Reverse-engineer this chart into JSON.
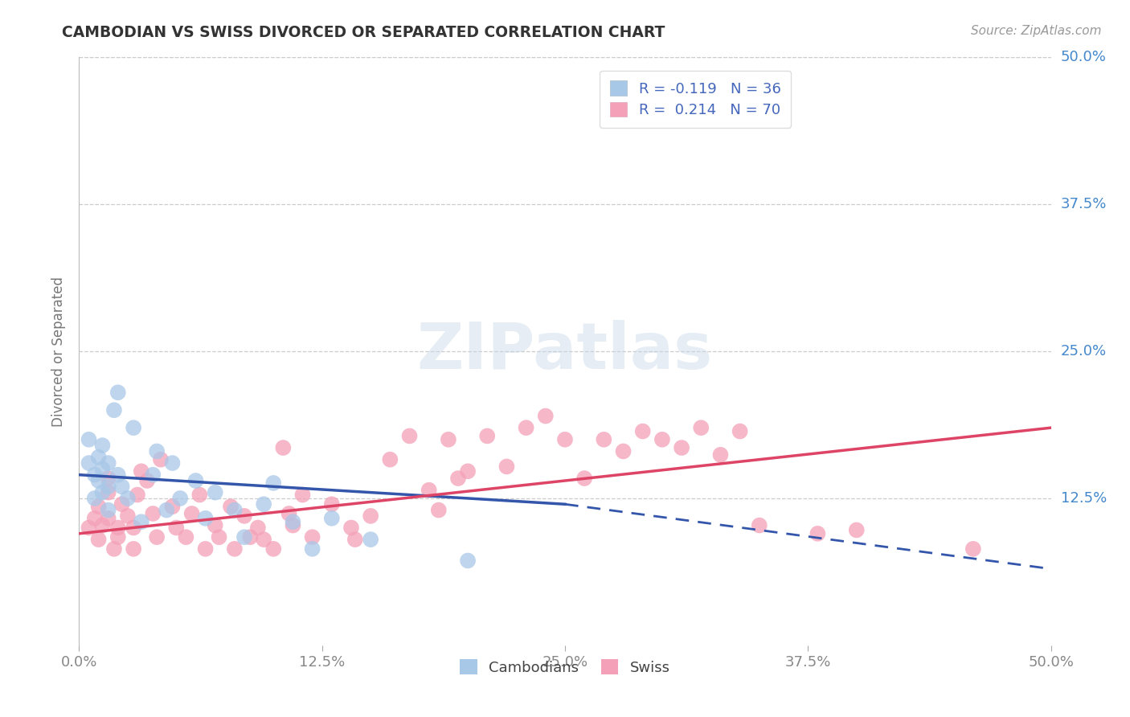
{
  "title": "CAMBODIAN VS SWISS DIVORCED OR SEPARATED CORRELATION CHART",
  "source": "Source: ZipAtlas.com",
  "ylabel": "Divorced or Separated",
  "xlim": [
    0.0,
    0.5
  ],
  "ylim": [
    0.0,
    0.5
  ],
  "xtick_labels": [
    "0.0%",
    "",
    "",
    "",
    "",
    "",
    "",
    "",
    "",
    "",
    "",
    "",
    "",
    "",
    "",
    "",
    "",
    "",
    "",
    "",
    "12.5%",
    "",
    "",
    "",
    "",
    "",
    "",
    "",
    "",
    "",
    "",
    "",
    "",
    "",
    "",
    "",
    "",
    "",
    "",
    "",
    "25.0%",
    "",
    "",
    "",
    "",
    "",
    "",
    "",
    "",
    "",
    "",
    "",
    "",
    "",
    "",
    "",
    "",
    "",
    "",
    "",
    "37.5%",
    "",
    "",
    "",
    "",
    "",
    "",
    "",
    "",
    "",
    "",
    "",
    "",
    "",
    "",
    "",
    "",
    "",
    "",
    "",
    "50.0%"
  ],
  "xtick_vals": [
    0.0,
    0.125,
    0.25,
    0.375,
    0.5
  ],
  "xtick_labels_simple": [
    "0.0%",
    "12.5%",
    "25.0%",
    "37.5%",
    "50.0%"
  ],
  "ytick_labels": [
    "12.5%",
    "25.0%",
    "37.5%",
    "50.0%"
  ],
  "ytick_vals": [
    0.125,
    0.25,
    0.375,
    0.5
  ],
  "legend_label1": "R = -0.119   N = 36",
  "legend_label2": "R =  0.214   N = 70",
  "legend_bottom_label1": "Cambodians",
  "legend_bottom_label2": "Swiss",
  "cambodian_color": "#a8c8e8",
  "swiss_color": "#f4a0b8",
  "trendline1_color": "#3355aa",
  "trendline2_color": "#dd4466",
  "watermark_color": "#c8d8e8",
  "cambodian_R": -0.119,
  "cambodian_N": 36,
  "swiss_R": 0.214,
  "swiss_N": 70,
  "cambodian_points": [
    [
      0.005,
      0.155
    ],
    [
      0.005,
      0.175
    ],
    [
      0.008,
      0.145
    ],
    [
      0.008,
      0.125
    ],
    [
      0.01,
      0.16
    ],
    [
      0.01,
      0.14
    ],
    [
      0.012,
      0.17
    ],
    [
      0.012,
      0.15
    ],
    [
      0.012,
      0.13
    ],
    [
      0.015,
      0.155
    ],
    [
      0.015,
      0.135
    ],
    [
      0.015,
      0.115
    ],
    [
      0.018,
      0.2
    ],
    [
      0.02,
      0.215
    ],
    [
      0.02,
      0.145
    ],
    [
      0.022,
      0.135
    ],
    [
      0.025,
      0.125
    ],
    [
      0.028,
      0.185
    ],
    [
      0.032,
      0.105
    ],
    [
      0.038,
      0.145
    ],
    [
      0.04,
      0.165
    ],
    [
      0.045,
      0.115
    ],
    [
      0.048,
      0.155
    ],
    [
      0.052,
      0.125
    ],
    [
      0.06,
      0.14
    ],
    [
      0.065,
      0.108
    ],
    [
      0.07,
      0.13
    ],
    [
      0.08,
      0.115
    ],
    [
      0.085,
      0.092
    ],
    [
      0.095,
      0.12
    ],
    [
      0.1,
      0.138
    ],
    [
      0.11,
      0.105
    ],
    [
      0.12,
      0.082
    ],
    [
      0.13,
      0.108
    ],
    [
      0.15,
      0.09
    ],
    [
      0.2,
      0.072
    ]
  ],
  "swiss_points": [
    [
      0.005,
      0.1
    ],
    [
      0.008,
      0.108
    ],
    [
      0.01,
      0.118
    ],
    [
      0.01,
      0.09
    ],
    [
      0.012,
      0.102
    ],
    [
      0.015,
      0.108
    ],
    [
      0.015,
      0.13
    ],
    [
      0.015,
      0.142
    ],
    [
      0.018,
      0.082
    ],
    [
      0.02,
      0.1
    ],
    [
      0.02,
      0.092
    ],
    [
      0.022,
      0.12
    ],
    [
      0.025,
      0.11
    ],
    [
      0.028,
      0.1
    ],
    [
      0.028,
      0.082
    ],
    [
      0.03,
      0.128
    ],
    [
      0.032,
      0.148
    ],
    [
      0.035,
      0.14
    ],
    [
      0.038,
      0.112
    ],
    [
      0.04,
      0.092
    ],
    [
      0.042,
      0.158
    ],
    [
      0.048,
      0.118
    ],
    [
      0.05,
      0.1
    ],
    [
      0.055,
      0.092
    ],
    [
      0.058,
      0.112
    ],
    [
      0.062,
      0.128
    ],
    [
      0.065,
      0.082
    ],
    [
      0.07,
      0.102
    ],
    [
      0.072,
      0.092
    ],
    [
      0.078,
      0.118
    ],
    [
      0.08,
      0.082
    ],
    [
      0.085,
      0.11
    ],
    [
      0.088,
      0.092
    ],
    [
      0.092,
      0.1
    ],
    [
      0.095,
      0.09
    ],
    [
      0.1,
      0.082
    ],
    [
      0.105,
      0.168
    ],
    [
      0.108,
      0.112
    ],
    [
      0.11,
      0.102
    ],
    [
      0.115,
      0.128
    ],
    [
      0.12,
      0.092
    ],
    [
      0.13,
      0.12
    ],
    [
      0.14,
      0.1
    ],
    [
      0.142,
      0.09
    ],
    [
      0.15,
      0.11
    ],
    [
      0.16,
      0.158
    ],
    [
      0.17,
      0.178
    ],
    [
      0.18,
      0.132
    ],
    [
      0.185,
      0.115
    ],
    [
      0.19,
      0.175
    ],
    [
      0.195,
      0.142
    ],
    [
      0.2,
      0.148
    ],
    [
      0.21,
      0.178
    ],
    [
      0.22,
      0.152
    ],
    [
      0.23,
      0.185
    ],
    [
      0.24,
      0.195
    ],
    [
      0.25,
      0.175
    ],
    [
      0.26,
      0.142
    ],
    [
      0.27,
      0.175
    ],
    [
      0.28,
      0.165
    ],
    [
      0.29,
      0.182
    ],
    [
      0.3,
      0.175
    ],
    [
      0.31,
      0.168
    ],
    [
      0.32,
      0.185
    ],
    [
      0.33,
      0.162
    ],
    [
      0.34,
      0.182
    ],
    [
      0.35,
      0.102
    ],
    [
      0.38,
      0.095
    ],
    [
      0.4,
      0.098
    ],
    [
      0.46,
      0.082
    ]
  ]
}
